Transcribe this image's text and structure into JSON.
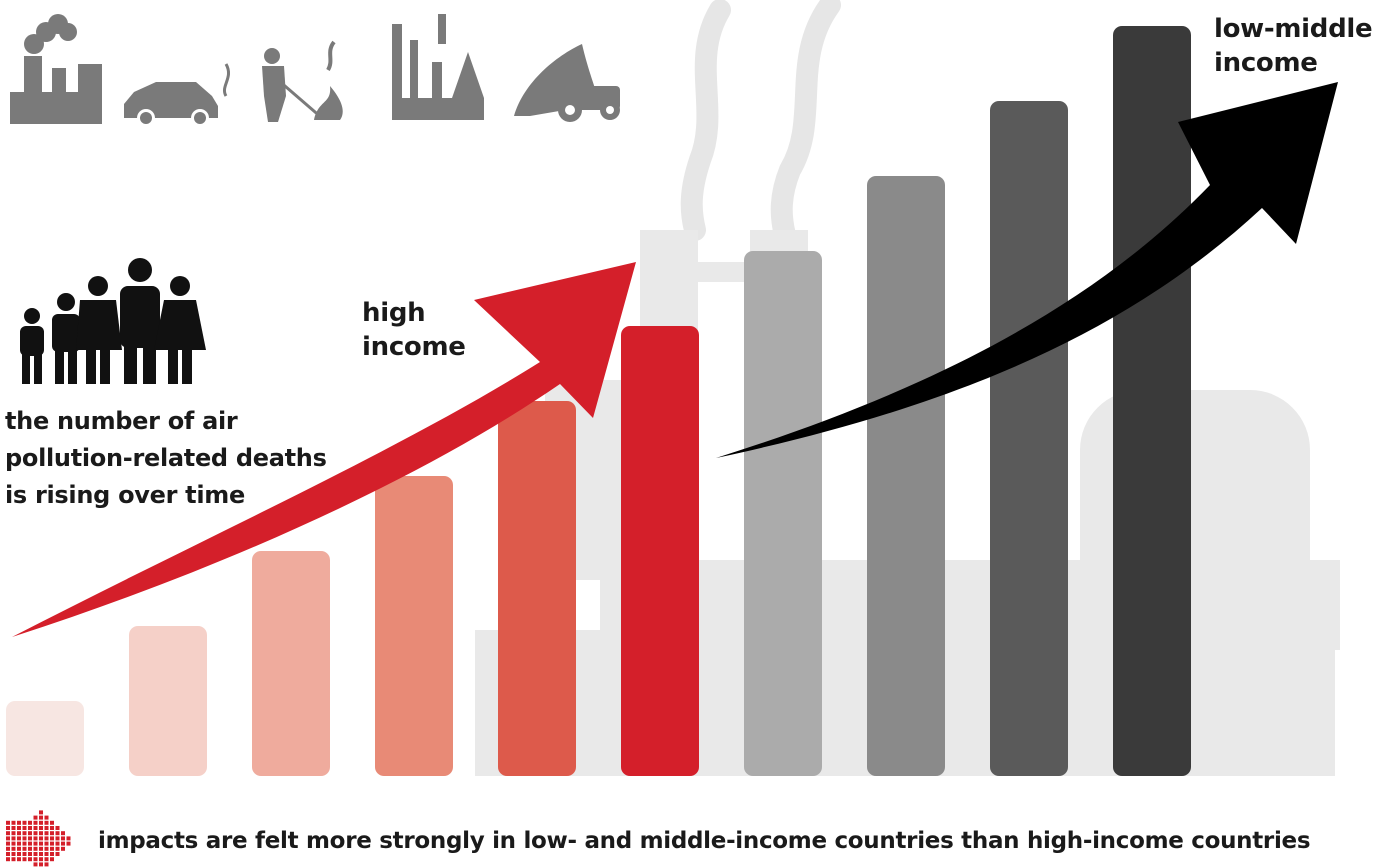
{
  "chart_data": {
    "type": "bar",
    "values": [
      1,
      2,
      3,
      4,
      5,
      6,
      7,
      8,
      9,
      10
    ],
    "colors": [
      "#f7e6e2",
      "#f5d0c8",
      "#efab9d",
      "#e88a76",
      "#dd5a4b",
      "#d41f2a",
      "#ababab",
      "#8a8a8a",
      "#5a5a5a",
      "#3a3a3a"
    ],
    "ylim": [
      0,
      10
    ],
    "grid": false,
    "annotations": {
      "high_income": "high\nincome",
      "low_middle_income": "low-middle\nincome"
    },
    "arrow_colors": {
      "high_income": "#d41f2a",
      "low_middle_income": "#000000"
    }
  },
  "description": "the number of air pollution-related deaths is rising over time",
  "footer": "impacts are felt more strongly in low- and middle-income countries than high-income countries",
  "icons": [
    "factory-icon",
    "car-exhaust-icon",
    "burning-waste-icon",
    "industry-icon",
    "tractor-icon",
    "family-icon",
    "dotted-arrow-icon"
  ],
  "colors": {
    "accent": "#d41f2a",
    "icon_gray": "#7a7a7a",
    "background_silhouette": "#e9e9e9"
  }
}
